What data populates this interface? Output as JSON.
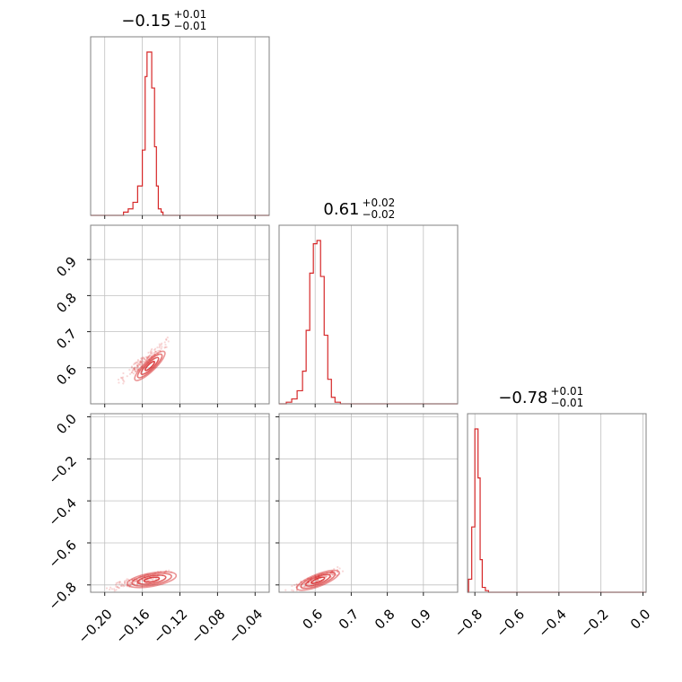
{
  "chart_data": {
    "type": "corner",
    "color": "#d62728",
    "grid": true,
    "parameters": [
      {
        "range": [
          -0.215,
          -0.025
        ],
        "ticks": [
          -0.2,
          -0.16,
          -0.12,
          -0.08,
          -0.04
        ],
        "tick_labels": [
          "−0.20",
          "−0.16",
          "−0.12",
          "−0.08",
          "−0.04"
        ],
        "title": {
          "value": "−0.15",
          "plus": "+0.01",
          "minus": "−0.01"
        },
        "histogram": {
          "edges": [
            -0.18,
            -0.175,
            -0.17,
            -0.165,
            -0.16,
            -0.157,
            -0.155,
            -0.153,
            -0.15,
            -0.147,
            -0.145,
            -0.143,
            -0.14,
            -0.138,
            -0.135
          ],
          "counts": [
            2,
            4,
            8,
            18,
            40,
            85,
            100,
            100,
            78,
            42,
            18,
            4,
            2,
            0
          ]
        }
      },
      {
        "range": [
          0.5,
          0.995
        ],
        "ticks": [
          0.6,
          0.7,
          0.8,
          0.9
        ],
        "tick_labels": [
          "0.6",
          "0.7",
          "0.8",
          "0.9"
        ],
        "title": {
          "value": "0.61",
          "plus": "+0.02",
          "minus": "−0.02"
        },
        "histogram": {
          "edges": [
            0.52,
            0.535,
            0.55,
            0.565,
            0.575,
            0.585,
            0.595,
            0.605,
            0.615,
            0.625,
            0.635,
            0.645,
            0.655,
            0.67,
            0.69
          ],
          "counts": [
            1,
            3,
            8,
            20,
            45,
            80,
            98,
            100,
            78,
            42,
            15,
            4,
            1,
            0
          ]
        }
      },
      {
        "range": [
          -0.835,
          0.015
        ],
        "ticks": [
          -0.8,
          -0.6,
          -0.4,
          -0.2,
          0.0
        ],
        "tick_labels": [
          "−0.8",
          "−0.6",
          "−0.4",
          "−0.2",
          "0.0"
        ],
        "title": {
          "value": "−0.78",
          "plus": "+0.01",
          "minus": "−0.01"
        },
        "histogram": {
          "edges": [
            -0.83,
            -0.815,
            -0.8,
            -0.785,
            -0.775,
            -0.765,
            -0.75,
            -0.735,
            -0.72
          ],
          "counts": [
            8,
            40,
            100,
            70,
            20,
            3,
            1,
            0
          ]
        }
      }
    ],
    "pairs": [
      {
        "row": 1,
        "col": 0,
        "center": [
          -0.152,
          0.605
        ],
        "direction": [
          0.012,
          0.03
        ],
        "contour_sizes": [
          [
            0.4,
            0.11
          ],
          [
            0.75,
            0.2
          ],
          [
            1.05,
            0.28
          ],
          [
            1.3,
            0.35
          ]
        ],
        "scatter_extent": [
          [
            -0.19,
            0.55
          ],
          [
            -0.13,
            0.68
          ]
        ]
      },
      {
        "row": 2,
        "col": 0,
        "center": [
          -0.15,
          -0.775
        ],
        "direction": [
          0.02,
          0.016
        ],
        "contour_sizes": [
          [
            0.4,
            0.11
          ],
          [
            0.75,
            0.2
          ],
          [
            1.05,
            0.28
          ],
          [
            1.3,
            0.35
          ]
        ],
        "scatter_extent": [
          [
            -0.2,
            -0.82
          ],
          [
            -0.13,
            -0.74
          ]
        ]
      },
      {
        "row": 2,
        "col": 1,
        "center": [
          0.608,
          -0.778
        ],
        "direction": [
          0.045,
          0.03
        ],
        "contour_sizes": [
          [
            0.4,
            0.11
          ],
          [
            0.75,
            0.2
          ],
          [
            1.05,
            0.28
          ],
          [
            1.3,
            0.35
          ]
        ],
        "scatter_extent": [
          [
            0.52,
            -0.83
          ],
          [
            0.68,
            -0.72
          ]
        ]
      }
    ]
  }
}
